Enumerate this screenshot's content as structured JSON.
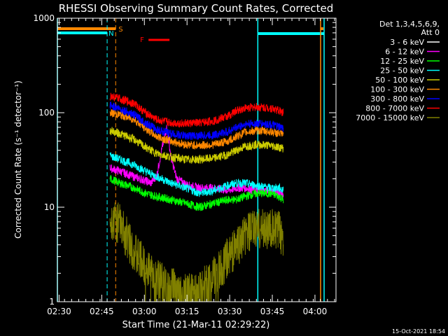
{
  "chart_data": {
    "type": "line",
    "title": "RHESSI Observing Summary Count Rates, Corrected",
    "xlabel": "Start Time (21-Mar-11 02:29:22)",
    "ylabel": "Corrected Count Rate (s⁻¹ detector⁻¹)",
    "yscale": "log",
    "xlim_minutes": [
      0,
      98
    ],
    "ylim": [
      1,
      1000
    ],
    "x_ticks": [
      {
        "label": "02:30",
        "minute": 0.6
      },
      {
        "label": "02:45",
        "minute": 15.6
      },
      {
        "label": "03:00",
        "minute": 30.6
      },
      {
        "label": "03:15",
        "minute": 45.6
      },
      {
        "label": "03:30",
        "minute": 60.6
      },
      {
        "label": "03:45",
        "minute": 75.6
      },
      {
        "label": "04:00",
        "minute": 90.6
      }
    ],
    "y_ticks": [
      {
        "label": "1",
        "value": 1
      },
      {
        "label": "10",
        "value": 10
      },
      {
        "label": "100",
        "value": 100
      },
      {
        "label": "1000",
        "value": 1000
      }
    ],
    "legend": {
      "position": "top-right",
      "header": [
        "Det 1,3,4,5,6,9,",
        "Att 0"
      ]
    },
    "series": [
      {
        "name": "3 - 6 keV",
        "color": "#000000",
        "x": [
          0,
          18.5,
          22,
          27,
          31,
          34,
          36,
          38,
          40,
          41.5,
          43,
          46,
          50,
          55,
          60,
          63,
          66,
          70,
          75,
          78,
          79.5
        ],
        "y": [
          0,
          28,
          27,
          24,
          22,
          26,
          36,
          80,
          55,
          28,
          17,
          15,
          15,
          15,
          12,
          15,
          15,
          15,
          14,
          10,
          8
        ]
      },
      {
        "name": "6 - 12 keV",
        "color": "#ff00ff",
        "x": [
          18.5,
          22,
          27,
          31,
          33,
          35,
          37,
          38.5,
          40,
          42,
          46,
          50,
          55,
          60,
          63,
          66,
          70,
          75,
          78,
          79.5
        ],
        "y": [
          26,
          24,
          21,
          19,
          18,
          22,
          45,
          70,
          33,
          20,
          17,
          16,
          16,
          15,
          16,
          16,
          15,
          15,
          14,
          13
        ]
      },
      {
        "name": "12 - 25 keV",
        "color": "#00ff00",
        "x": [
          18.5,
          22,
          27,
          31,
          35,
          40,
          45,
          50,
          55,
          60,
          63,
          66,
          70,
          75,
          78,
          79.5
        ],
        "y": [
          20,
          18,
          16,
          14,
          13,
          12,
          11,
          10,
          11,
          12,
          12,
          13,
          14,
          14,
          13,
          12
        ]
      },
      {
        "name": "25 - 50 keV",
        "color": "#00ffff",
        "x": [
          18.5,
          22,
          27,
          31,
          35,
          40,
          45,
          50,
          55,
          60,
          63,
          66,
          70,
          75,
          78,
          79.5
        ],
        "y": [
          35,
          32,
          28,
          24,
          21,
          18,
          16,
          14,
          15,
          17,
          18,
          18,
          17,
          16,
          16,
          15
        ]
      },
      {
        "name": "50 - 100 keV",
        "color": "#cccc00",
        "x": [
          18.5,
          22,
          27,
          31,
          35,
          40,
          45,
          50,
          55,
          60,
          63,
          66,
          70,
          75,
          78,
          79.5
        ],
        "y": [
          65,
          60,
          52,
          43,
          37,
          34,
          32,
          32,
          33,
          36,
          40,
          44,
          46,
          45,
          43,
          42
        ]
      },
      {
        "name": "100 - 300 keV",
        "color": "#ff8800",
        "x": [
          18.5,
          22,
          27,
          31,
          35,
          40,
          45,
          50,
          55,
          60,
          63,
          66,
          70,
          75,
          78,
          79.5
        ],
        "y": [
          100,
          95,
          85,
          68,
          56,
          50,
          46,
          45,
          46,
          50,
          56,
          62,
          65,
          63,
          60,
          58
        ]
      },
      {
        "name": "300 - 800 keV",
        "color": "#0000ff",
        "x": [
          18.5,
          22,
          27,
          31,
          35,
          40,
          45,
          50,
          55,
          60,
          63,
          66,
          70,
          75,
          78,
          79.5
        ],
        "y": [
          120,
          110,
          95,
          78,
          66,
          60,
          57,
          57,
          58,
          63,
          70,
          75,
          77,
          75,
          70,
          68
        ]
      },
      {
        "name": "800 - 7000 keV",
        "color": "#ff0000",
        "x": [
          18.5,
          22,
          27,
          31,
          35,
          40,
          45,
          50,
          55,
          60,
          63,
          66,
          70,
          75,
          78,
          79.5
        ],
        "y": [
          150,
          140,
          125,
          100,
          84,
          78,
          77,
          78,
          82,
          92,
          105,
          112,
          115,
          112,
          105,
          100
        ]
      },
      {
        "name": "7000 - 15000 keV",
        "color": "#808000",
        "x": [
          18.5,
          22,
          24,
          26,
          28,
          30,
          33,
          36,
          40,
          45,
          50,
          55,
          58,
          60,
          62,
          64,
          66,
          68,
          70,
          73,
          75,
          78,
          79.5
        ],
        "y": [
          8,
          6.5,
          5,
          4,
          3,
          2.5,
          2,
          1.6,
          1.4,
          1.2,
          1.3,
          1.8,
          2.2,
          3,
          3.5,
          4.2,
          5,
          5.5,
          5.8,
          6,
          5.8,
          5.5,
          5
        ]
      }
    ],
    "annotations": [
      {
        "label": "S",
        "color": "#ff8800",
        "minute": 20.5
      },
      {
        "label": "N",
        "color": "#00ffff",
        "minute": 17.5
      },
      {
        "label": "F",
        "color": "#ff0000",
        "minute": 35
      }
    ],
    "timestamp": "15-Oct-2021 18:54"
  }
}
